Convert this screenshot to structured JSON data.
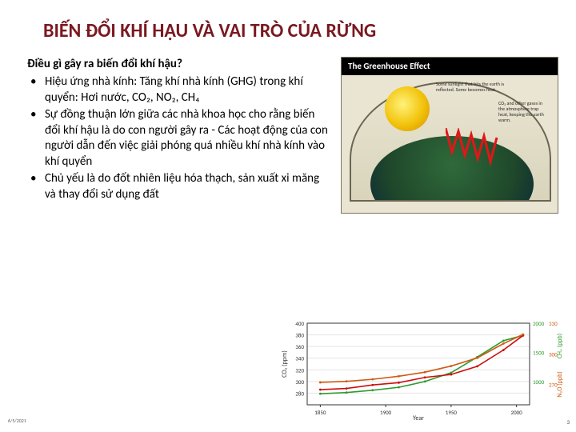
{
  "title": {
    "text": "BIẾN ĐỔI KHÍ HẬU VÀ VAI TRÒ CỦA RỪNG",
    "color": "#7a1820"
  },
  "subheading": "Điều gì gây ra biến đổi khí hậu?",
  "bullets": [
    "Hiệu ứng nhà kính: Tăng khí nhà kính (GHG) trong khí quyển: Hơi nước, CO₂, NO₂, CH₄",
    "Sự đồng thuận lớn giữa các nhà khoa học cho rằng biến đổi khí hậu là do con người gây ra - Các hoạt động của con người dẫn đến việc giải phóng quá nhiều khí nhà kính vào khí quyển",
    "Chủ yếu là do đốt nhiên liệu hóa thạch, sản xuất xi măng và thay đổi sử dụng đất"
  ],
  "greenhouse": {
    "title": "The Greenhouse Effect",
    "caption_left": "Some sunlight that hits the earth is reflected. Some becomes heat.",
    "caption_right": "CO₂ and other gases in the atmosphere trap heat, keeping the earth warm.",
    "sun_color": "#f2c20a",
    "earth_color": "#1f472a",
    "ray_color": "#e01717"
  },
  "chart": {
    "type": "line",
    "xlabel": "Year",
    "ylabel_left": "CO₂ (ppm)",
    "ylabel_right_top": "CH₄ (ppb)",
    "ylabel_right_bot": "N₂O (ppb)",
    "xlim": [
      1840,
      2010
    ],
    "xticks": [
      1850,
      1900,
      1950,
      2000
    ],
    "left_ylim": [
      260,
      400
    ],
    "left_yticks": [
      280,
      300,
      320,
      340,
      360,
      380,
      400
    ],
    "right_top_ylim": [
      600,
      2000
    ],
    "right_top_yticks": [
      1000,
      1500,
      2000
    ],
    "right_bot_ylim": [
      250,
      330
    ],
    "right_bot_yticks": [
      270,
      300,
      330
    ],
    "series": [
      {
        "name": "CH4",
        "color": "#2e9b2e",
        "points": [
          [
            1850,
            790
          ],
          [
            1870,
            810
          ],
          [
            1890,
            850
          ],
          [
            1910,
            900
          ],
          [
            1930,
            1000
          ],
          [
            1950,
            1150
          ],
          [
            1970,
            1420
          ],
          [
            1990,
            1700
          ],
          [
            2005,
            1790
          ]
        ]
      },
      {
        "name": "CO2",
        "color": "#cc0e0e",
        "points": [
          [
            1850,
            286
          ],
          [
            1870,
            288
          ],
          [
            1890,
            294
          ],
          [
            1910,
            298
          ],
          [
            1930,
            307
          ],
          [
            1950,
            312
          ],
          [
            1970,
            326
          ],
          [
            1990,
            354
          ],
          [
            2005,
            379
          ]
        ]
      },
      {
        "name": "N2O",
        "color": "#d05a12",
        "points": [
          [
            1850,
            272
          ],
          [
            1870,
            273
          ],
          [
            1890,
            275
          ],
          [
            1910,
            278
          ],
          [
            1930,
            282
          ],
          [
            1950,
            288
          ],
          [
            1970,
            296
          ],
          [
            1990,
            310
          ],
          [
            2005,
            319
          ]
        ]
      }
    ],
    "background_color": "#ffffff",
    "grid_color": "#e4e4e4",
    "axis_color": "#333333",
    "label_fontsize": 8,
    "tick_fontsize": 7
  },
  "footer": {
    "date": "6/5/2021",
    "page": "3"
  }
}
